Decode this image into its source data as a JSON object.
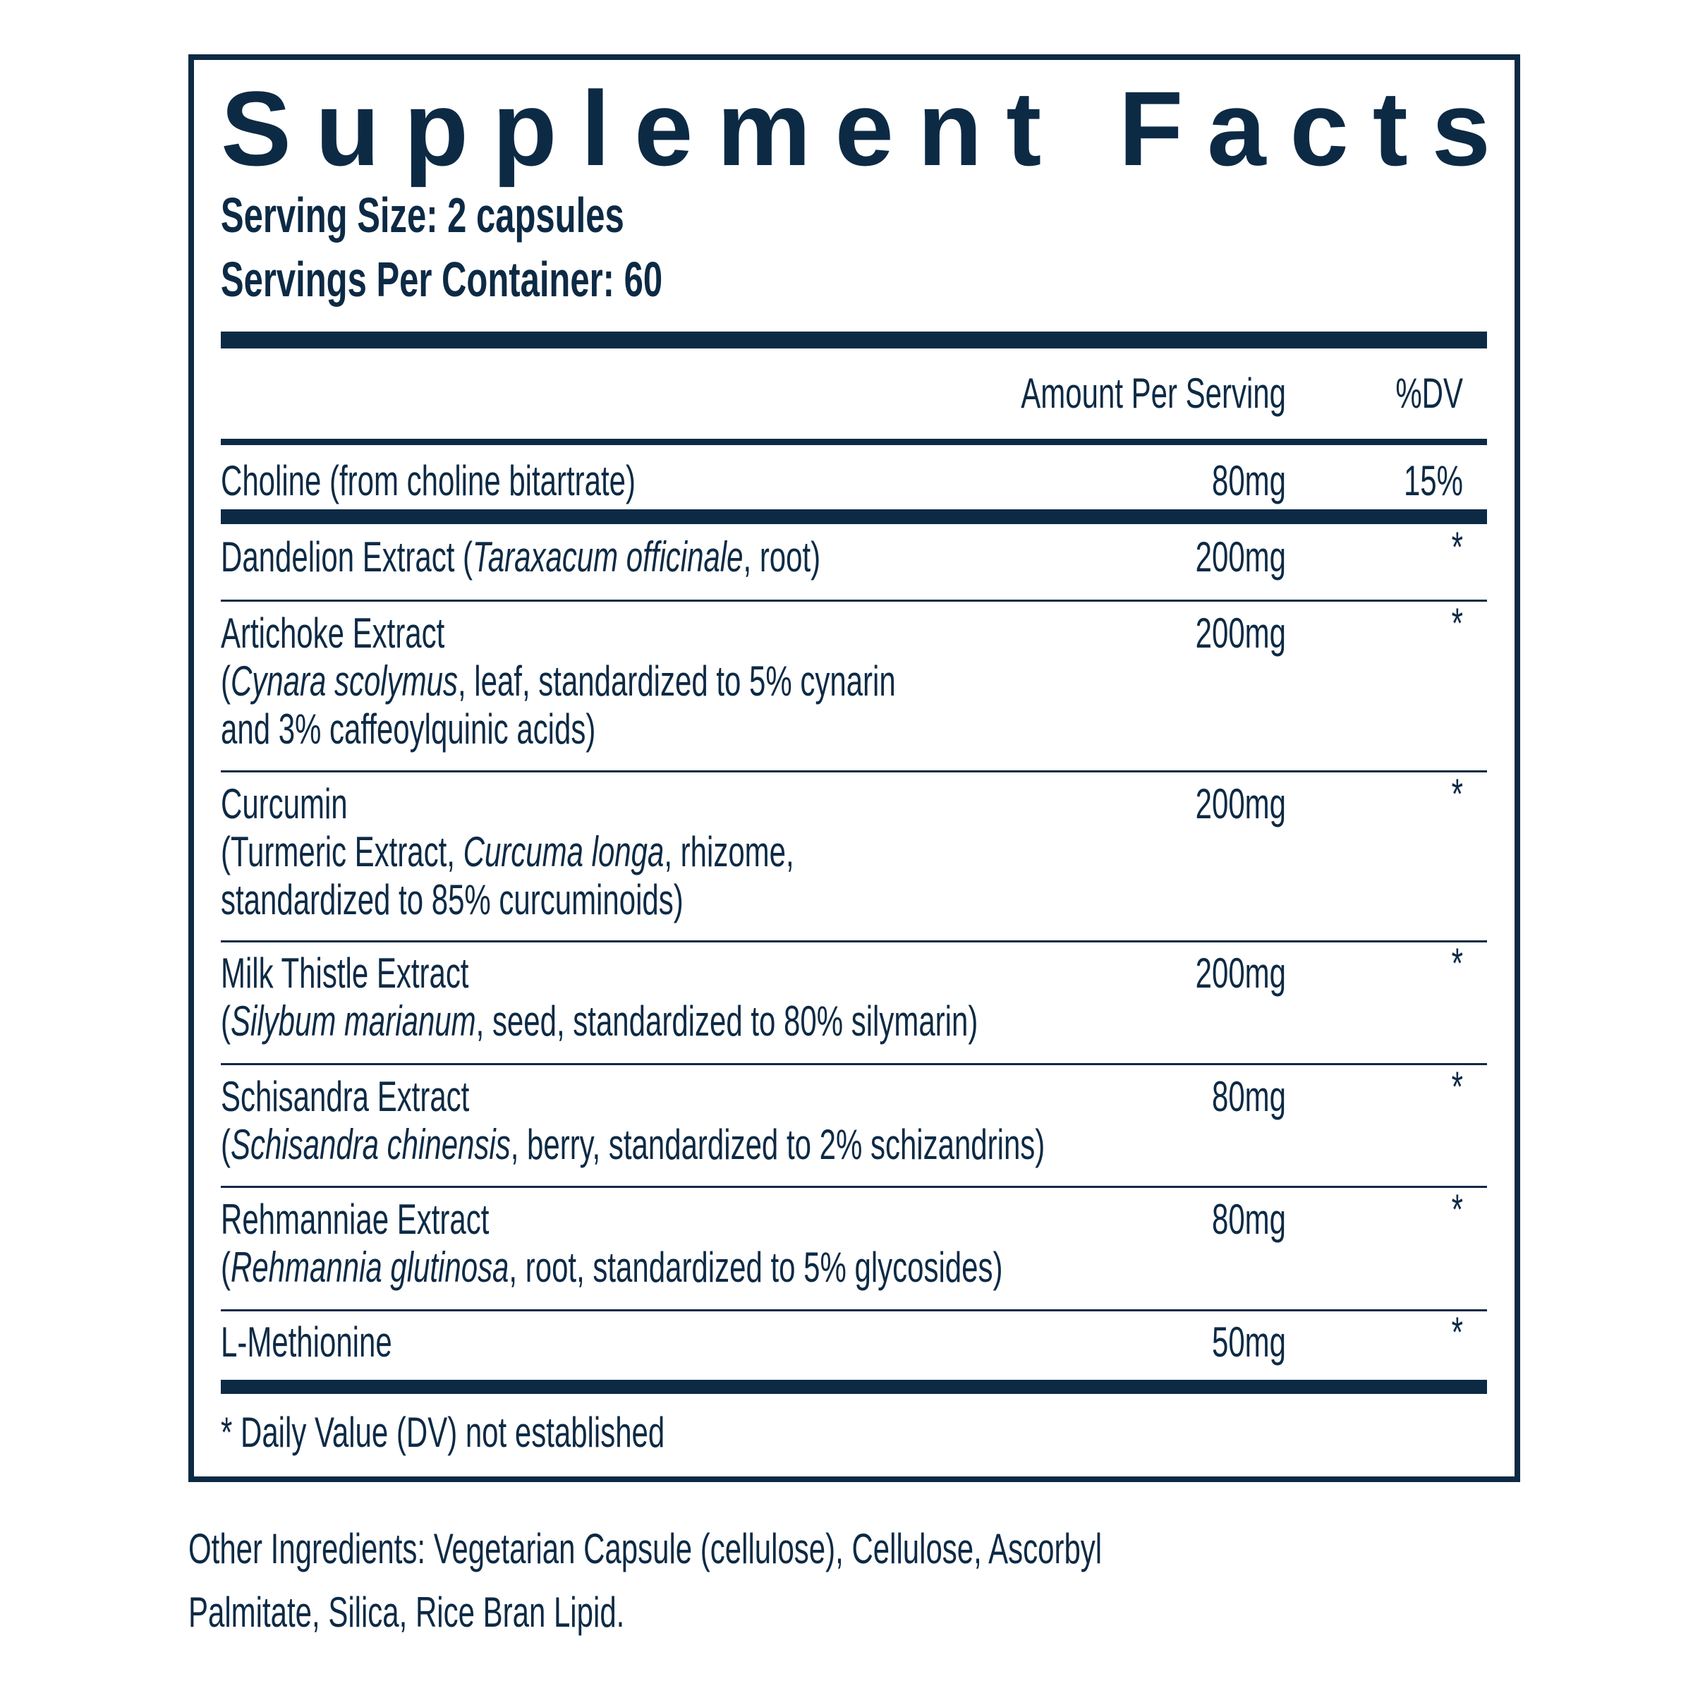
{
  "header": {
    "title": "Supplement Facts",
    "serving_size": "Serving Size: 2 capsules",
    "servings_per_container": "Servings Per Container: 60"
  },
  "table": {
    "columns": [
      "Amount Per Serving",
      "%DV"
    ],
    "rows": [
      {
        "lines": [
          [
            {
              "text": "Choline (from choline bitartrate)"
            }
          ]
        ],
        "amount": "80mg",
        "dv": "15%"
      },
      {
        "lines": [
          [
            {
              "text": "Dandelion Extract ("
            },
            {
              "text": "Taraxacum officinale",
              "italic": true
            },
            {
              "text": ", root)"
            }
          ]
        ],
        "amount": "200mg",
        "dv": "*"
      },
      {
        "lines": [
          [
            {
              "text": "Artichoke Extract"
            }
          ],
          [
            {
              "text": "("
            },
            {
              "text": "Cynara scolymus",
              "italic": true
            },
            {
              "text": ", leaf, standardized to 5% cynarin"
            }
          ],
          [
            {
              "text": "and 3% caffeoylquinic acids)"
            }
          ]
        ],
        "amount": "200mg",
        "dv": "*"
      },
      {
        "lines": [
          [
            {
              "text": "Curcumin"
            }
          ],
          [
            {
              "text": "(Turmeric Extract, "
            },
            {
              "text": "Curcuma longa",
              "italic": true
            },
            {
              "text": ", rhizome,"
            }
          ],
          [
            {
              "text": "standardized to 85% curcuminoids)"
            }
          ]
        ],
        "amount": "200mg",
        "dv": "*"
      },
      {
        "lines": [
          [
            {
              "text": "Milk Thistle Extract"
            }
          ],
          [
            {
              "text": "("
            },
            {
              "text": "Silybum marianum",
              "italic": true
            },
            {
              "text": ", seed, standardized to 80% silymarin)"
            }
          ]
        ],
        "amount": "200mg",
        "dv": "*"
      },
      {
        "lines": [
          [
            {
              "text": "Schisandra Extract"
            }
          ],
          [
            {
              "text": "("
            },
            {
              "text": "Schisandra chinensis",
              "italic": true
            },
            {
              "text": ", berry, standardized to 2% schizandrins)"
            }
          ]
        ],
        "amount": "80mg",
        "dv": "*"
      },
      {
        "lines": [
          [
            {
              "text": "Rehmanniae Extract"
            }
          ],
          [
            {
              "text": "("
            },
            {
              "text": "Rehmannia glutinosa",
              "italic": true
            },
            {
              "text": ", root, standardized to 5% glycosides)"
            }
          ]
        ],
        "amount": "80mg",
        "dv": "*"
      },
      {
        "lines": [
          [
            {
              "text": "L-Methionine"
            }
          ]
        ],
        "amount": "50mg",
        "dv": "*"
      }
    ]
  },
  "footnote": "* Daily Value (DV) not established",
  "other_ingredients": [
    "Other Ingredients: Vegetarian Capsule (cellulose), Cellulose, Ascorbyl",
    "Palmitate, Silica, Rice Bran Lipid."
  ]
}
